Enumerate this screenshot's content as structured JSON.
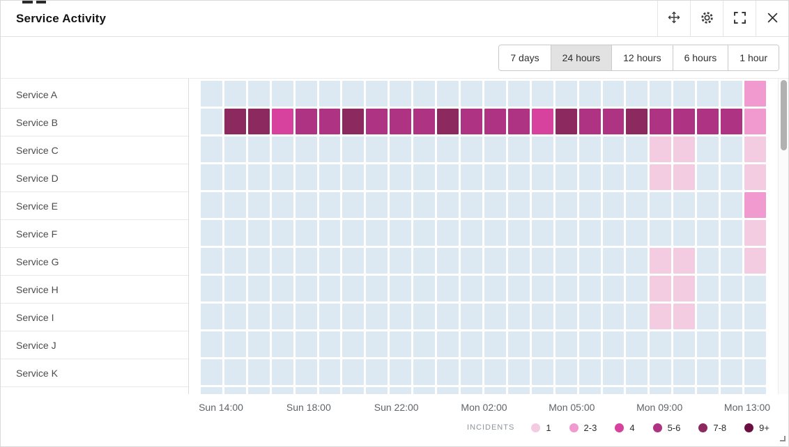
{
  "header": {
    "title": "Service Activity"
  },
  "tabs": {
    "options": [
      "7 days",
      "24 hours",
      "12 hours",
      "6 hours",
      "1 hour"
    ],
    "selected": "24 hours"
  },
  "chart_data": {
    "type": "heatmap",
    "x_ticks": [
      "Sun 14:00",
      "Sun 18:00",
      "Sun 22:00",
      "Mon 02:00",
      "Mon 05:00",
      "Mon 09:00",
      "Mon 13:00"
    ],
    "palette": {
      "0": "#dce9f2",
      "1": "#f4cce2",
      "2-3": "#f09ad0",
      "4": "#d6429e",
      "5-6": "#ae3382",
      "7-8": "#8c2a5f",
      "9+": "#6d0e43"
    },
    "rows": [
      {
        "service": "Service A",
        "cells": [
          "0",
          "0",
          "0",
          "0",
          "0",
          "0",
          "0",
          "0",
          "0",
          "0",
          "0",
          "0",
          "0",
          "0",
          "0",
          "0",
          "0",
          "0",
          "0",
          "0",
          "0",
          "0",
          "0",
          "2-3"
        ]
      },
      {
        "service": "Service B",
        "cells": [
          "0",
          "7-8",
          "7-8",
          "4",
          "5-6",
          "5-6",
          "7-8",
          "5-6",
          "5-6",
          "5-6",
          "7-8",
          "5-6",
          "5-6",
          "5-6",
          "4",
          "7-8",
          "5-6",
          "5-6",
          "7-8",
          "5-6",
          "5-6",
          "5-6",
          "5-6",
          "2-3"
        ]
      },
      {
        "service": "Service C",
        "cells": [
          "0",
          "0",
          "0",
          "0",
          "0",
          "0",
          "0",
          "0",
          "0",
          "0",
          "0",
          "0",
          "0",
          "0",
          "0",
          "0",
          "0",
          "0",
          "0",
          "1",
          "1",
          "0",
          "0",
          "1"
        ]
      },
      {
        "service": "Service D",
        "cells": [
          "0",
          "0",
          "0",
          "0",
          "0",
          "0",
          "0",
          "0",
          "0",
          "0",
          "0",
          "0",
          "0",
          "0",
          "0",
          "0",
          "0",
          "0",
          "0",
          "1",
          "1",
          "0",
          "0",
          "1"
        ]
      },
      {
        "service": "Service E",
        "cells": [
          "0",
          "0",
          "0",
          "0",
          "0",
          "0",
          "0",
          "0",
          "0",
          "0",
          "0",
          "0",
          "0",
          "0",
          "0",
          "0",
          "0",
          "0",
          "0",
          "0",
          "0",
          "0",
          "0",
          "2-3"
        ]
      },
      {
        "service": "Service F",
        "cells": [
          "0",
          "0",
          "0",
          "0",
          "0",
          "0",
          "0",
          "0",
          "0",
          "0",
          "0",
          "0",
          "0",
          "0",
          "0",
          "0",
          "0",
          "0",
          "0",
          "0",
          "0",
          "0",
          "0",
          "1"
        ]
      },
      {
        "service": "Service G",
        "cells": [
          "0",
          "0",
          "0",
          "0",
          "0",
          "0",
          "0",
          "0",
          "0",
          "0",
          "0",
          "0",
          "0",
          "0",
          "0",
          "0",
          "0",
          "0",
          "0",
          "1",
          "1",
          "0",
          "0",
          "1"
        ]
      },
      {
        "service": "Service H",
        "cells": [
          "0",
          "0",
          "0",
          "0",
          "0",
          "0",
          "0",
          "0",
          "0",
          "0",
          "0",
          "0",
          "0",
          "0",
          "0",
          "0",
          "0",
          "0",
          "0",
          "1",
          "1",
          "0",
          "0",
          "0"
        ]
      },
      {
        "service": "Service I",
        "cells": [
          "0",
          "0",
          "0",
          "0",
          "0",
          "0",
          "0",
          "0",
          "0",
          "0",
          "0",
          "0",
          "0",
          "0",
          "0",
          "0",
          "0",
          "0",
          "0",
          "1",
          "1",
          "0",
          "0",
          "0"
        ]
      },
      {
        "service": "Service J",
        "cells": [
          "0",
          "0",
          "0",
          "0",
          "0",
          "0",
          "0",
          "0",
          "0",
          "0",
          "0",
          "0",
          "0",
          "0",
          "0",
          "0",
          "0",
          "0",
          "0",
          "0",
          "0",
          "0",
          "0",
          "0"
        ]
      },
      {
        "service": "Service K",
        "cells": [
          "0",
          "0",
          "0",
          "0",
          "0",
          "0",
          "0",
          "0",
          "0",
          "0",
          "0",
          "0",
          "0",
          "0",
          "0",
          "0",
          "0",
          "0",
          "0",
          "0",
          "0",
          "0",
          "0",
          "0"
        ]
      },
      {
        "service": "",
        "cells": [
          "0",
          "0",
          "0",
          "0",
          "0",
          "0",
          "0",
          "0",
          "0",
          "0",
          "0",
          "0",
          "0",
          "0",
          "0",
          "0",
          "0",
          "0",
          "0",
          "0",
          "0",
          "0",
          "0",
          "0"
        ]
      }
    ]
  },
  "legend": {
    "label": "INCIDENTS",
    "items": [
      {
        "label": "1",
        "level": "1"
      },
      {
        "label": "2-3",
        "level": "2-3"
      },
      {
        "label": "4",
        "level": "4"
      },
      {
        "label": "5-6",
        "level": "5-6"
      },
      {
        "label": "7-8",
        "level": "7-8"
      },
      {
        "label": "9+",
        "level": "9+"
      }
    ]
  }
}
